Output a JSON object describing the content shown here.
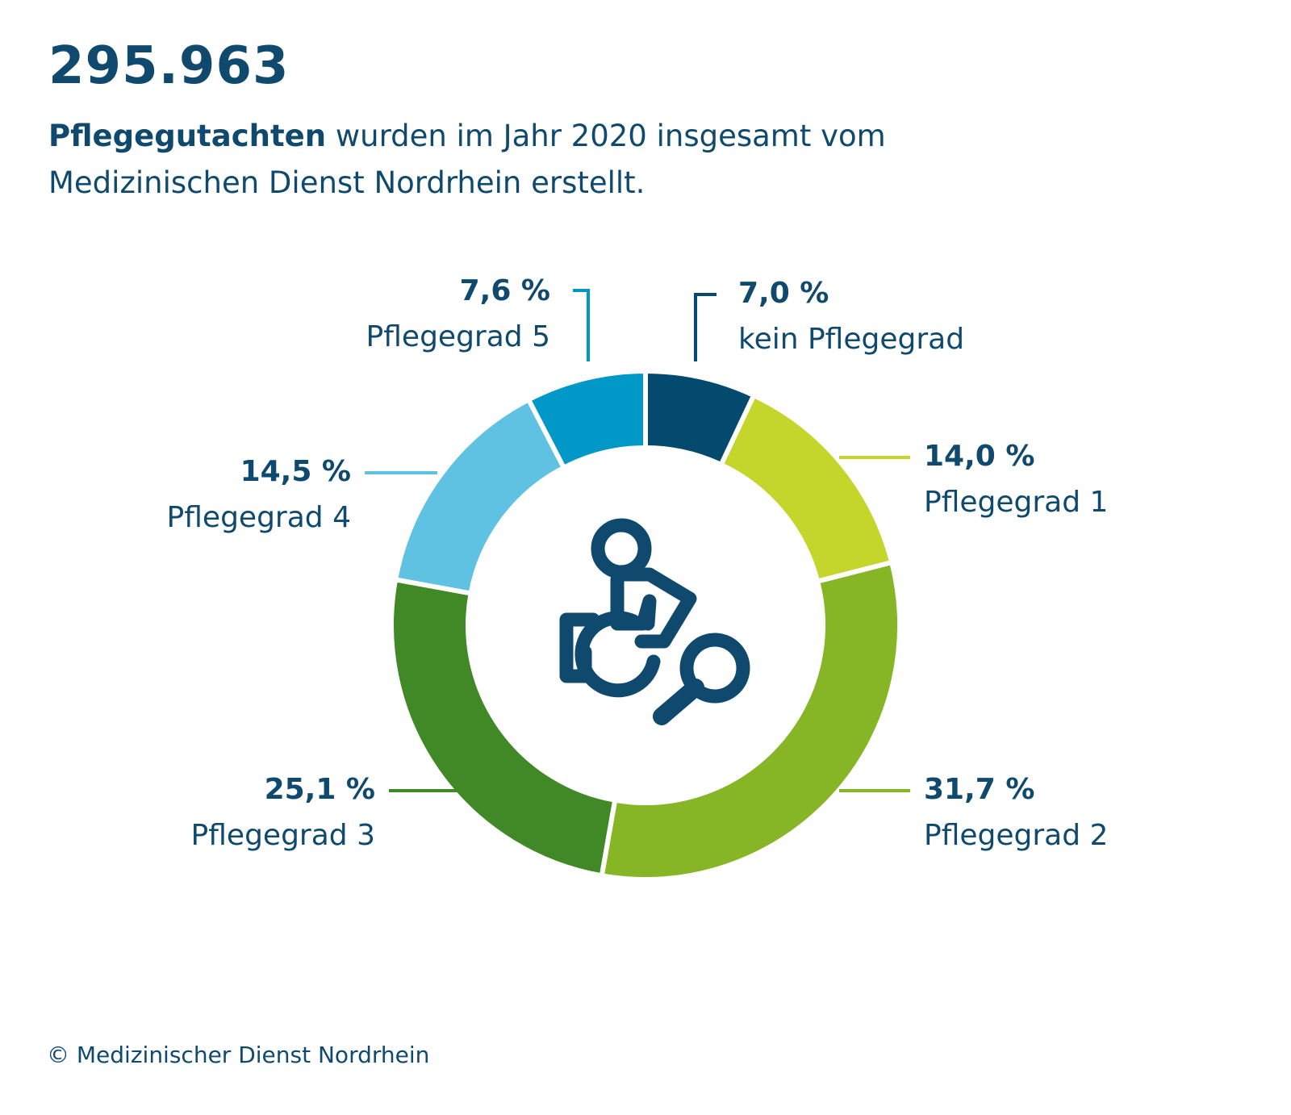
{
  "header": {
    "headline": "295.963",
    "subtitle_bold": "Pflegegutachten",
    "subtitle_rest": " wurden im Jahr 2020 insgesamt vom Medizinischen Dienst Nordrhein erstellt."
  },
  "chart_data": {
    "type": "pie",
    "style": "donut",
    "title": "",
    "center_icon": "wheelchair-magnifier-icon",
    "slices": [
      {
        "label": "kein Pflegegrad",
        "value": 7.0,
        "value_label": "7,0 %",
        "color": "#034a6e"
      },
      {
        "label": "Pflegegrad 1",
        "value": 14.0,
        "value_label": "14,0 %",
        "color": "#c4d52c"
      },
      {
        "label": "Pflegegrad 2",
        "value": 31.7,
        "value_label": "31,7 %",
        "color": "#86b525"
      },
      {
        "label": "Pflegegrad 3",
        "value": 25.1,
        "value_label": "25,1 %",
        "color": "#418826"
      },
      {
        "label": "Pflegegrad 4",
        "value": 14.5,
        "value_label": "14,5 %",
        "color": "#5fc2e2"
      },
      {
        "label": "Pflegegrad 5",
        "value": 7.6,
        "value_label": "7,6 %",
        "color": "#0098c7"
      }
    ]
  },
  "colors": {
    "text": "#0f4a6e",
    "icon": "#0f4a6e"
  },
  "footer": {
    "copyright": "© Medizinischer Dienst Nordrhein"
  }
}
